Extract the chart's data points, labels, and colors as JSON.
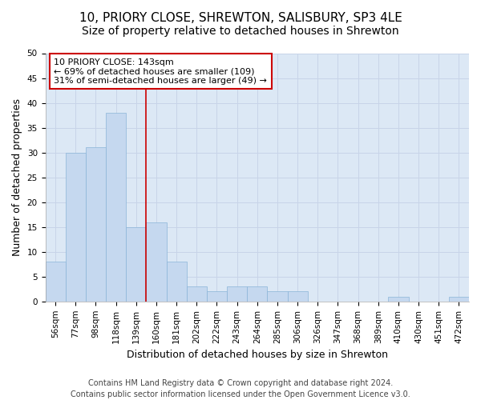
{
  "title1": "10, PRIORY CLOSE, SHREWTON, SALISBURY, SP3 4LE",
  "title2": "Size of property relative to detached houses in Shrewton",
  "xlabel": "Distribution of detached houses by size in Shrewton",
  "ylabel": "Number of detached properties",
  "footnote1": "Contains HM Land Registry data © Crown copyright and database right 2024.",
  "footnote2": "Contains public sector information licensed under the Open Government Licence v3.0.",
  "bar_labels": [
    "56sqm",
    "77sqm",
    "98sqm",
    "118sqm",
    "139sqm",
    "160sqm",
    "181sqm",
    "202sqm",
    "222sqm",
    "243sqm",
    "264sqm",
    "285sqm",
    "306sqm",
    "326sqm",
    "347sqm",
    "368sqm",
    "389sqm",
    "410sqm",
    "430sqm",
    "451sqm",
    "472sqm"
  ],
  "bar_values": [
    8,
    30,
    31,
    38,
    15,
    16,
    8,
    3,
    2,
    3,
    3,
    2,
    2,
    0,
    0,
    0,
    0,
    1,
    0,
    0,
    1
  ],
  "bar_color": "#c5d8ef",
  "bar_edge_color": "#8ab4d8",
  "vline_x": 4.5,
  "vline_color": "#cc0000",
  "annotation_text": "10 PRIORY CLOSE: 143sqm\n← 69% of detached houses are smaller (109)\n31% of semi-detached houses are larger (49) →",
  "annotation_box_color": "#ffffff",
  "annotation_box_edge_color": "#cc0000",
  "ylim": [
    0,
    50
  ],
  "yticks": [
    0,
    5,
    10,
    15,
    20,
    25,
    30,
    35,
    40,
    45,
    50
  ],
  "grid_color": "#c8d4e8",
  "bg_color": "#dce8f5",
  "title_fontsize": 11,
  "subtitle_fontsize": 10,
  "axis_label_fontsize": 9,
  "tick_fontsize": 7.5,
  "annot_fontsize": 8,
  "footnote_fontsize": 7
}
